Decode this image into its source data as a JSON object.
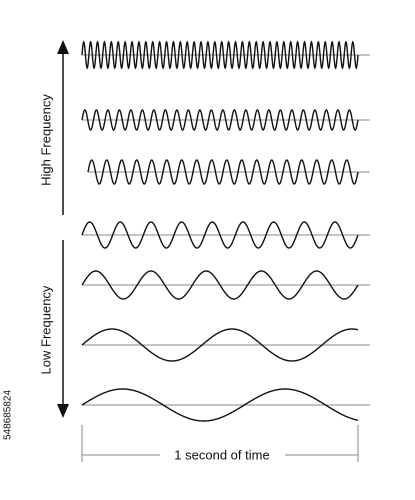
{
  "labels": {
    "high": "High Frequency",
    "low": "Low Frequency",
    "time": "1 second of time",
    "stock_id": "548685824"
  }
}
